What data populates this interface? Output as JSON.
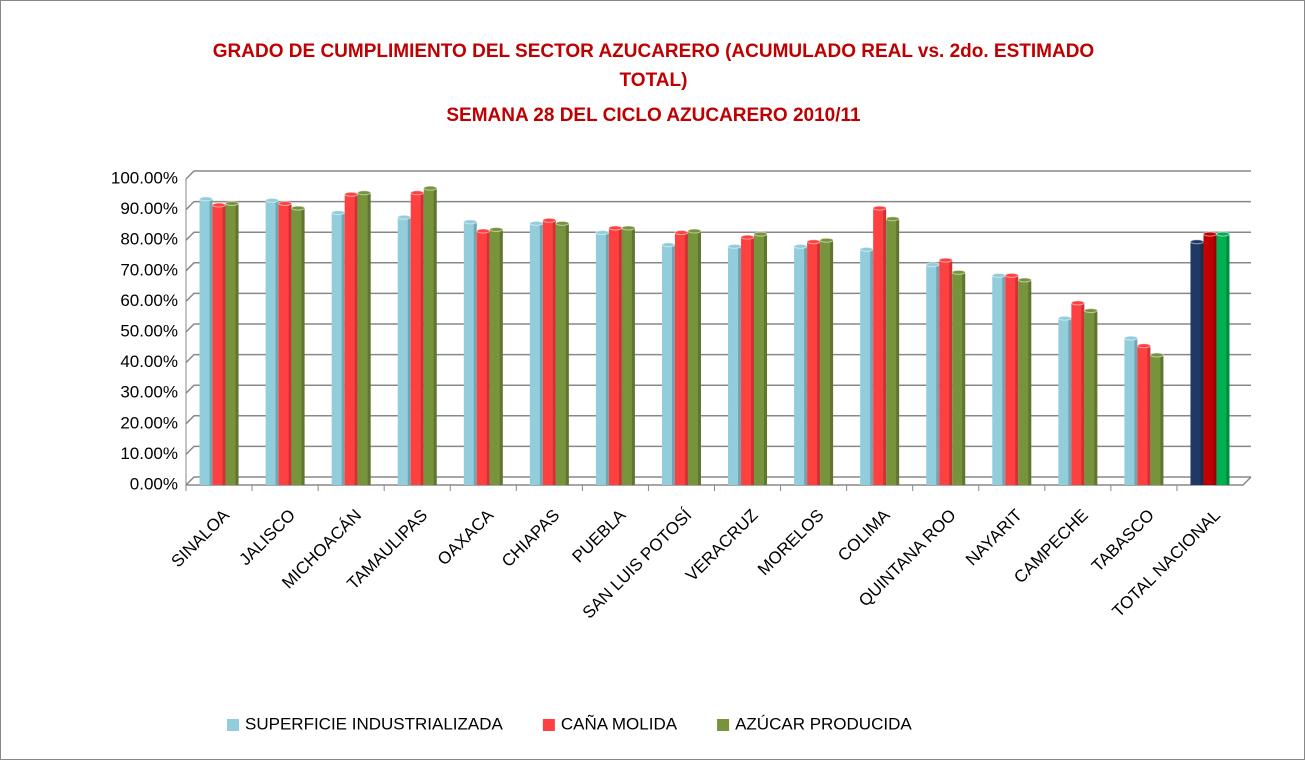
{
  "chart_data": {
    "type": "bar",
    "title": "GRADO DE CUMPLIMIENTO DEL SECTOR AZUCARERO (ACUMULADO REAL vs. 2do. ESTIMADO TOTAL)",
    "subtitle": "SEMANA 28 DEL CICLO AZUCARERO 2010/11",
    "categories": [
      "SINALOA",
      "JALISCO",
      "MICHOACÁN",
      "TAMAULIPAS",
      "OAXACA",
      "CHIAPAS",
      "PUEBLA",
      "SAN LUIS POTOSÍ",
      "VERACRUZ",
      "MORELOS",
      "COLIMA",
      "QUINTANA ROO",
      "NAYARIT",
      "CAMPECHE",
      "TABASCO",
      "TOTAL NACIONAL"
    ],
    "series": [
      {
        "name": "SUPERFICIE INDUSTRIALIZADA",
        "color": "#92cddc",
        "colors": [
          "#92cddc",
          "#92cddc",
          "#92cddc",
          "#92cddc",
          "#92cddc",
          "#92cddc",
          "#92cddc",
          "#92cddc",
          "#92cddc",
          "#92cddc",
          "#92cddc",
          "#92cddc",
          "#92cddc",
          "#92cddc",
          "#92cddc",
          "#1f3864"
        ],
        "values": [
          93.5,
          93,
          89,
          87.5,
          86,
          85.5,
          82.5,
          78.5,
          78,
          78,
          77,
          72,
          68.5,
          54.5,
          48,
          79.5
        ]
      },
      {
        "name": "CAÑA MOLIDA",
        "color": "#ff4040",
        "colors": [
          "#ff4040",
          "#ff4040",
          "#ff4040",
          "#ff4040",
          "#ff4040",
          "#ff4040",
          "#ff4040",
          "#ff4040",
          "#ff4040",
          "#ff4040",
          "#ff4040",
          "#ff4040",
          "#ff4040",
          "#ff4040",
          "#ff4040",
          "#c00000"
        ],
        "values": [
          91.5,
          92,
          95,
          95.5,
          83,
          86.5,
          84,
          82.5,
          81,
          79.5,
          90.5,
          73.5,
          68.5,
          59.5,
          45.5,
          82
        ]
      },
      {
        "name": "AZÚCAR PRODUCIDA",
        "color": "#77933c",
        "colors": [
          "#77933c",
          "#77933c",
          "#77933c",
          "#77933c",
          "#77933c",
          "#77933c",
          "#77933c",
          "#77933c",
          "#77933c",
          "#77933c",
          "#77933c",
          "#77933c",
          "#77933c",
          "#77933c",
          "#77933c",
          "#00b050"
        ],
        "values": [
          92,
          90.5,
          95.5,
          97,
          83.5,
          85.5,
          84,
          83,
          82,
          80,
          87,
          69.5,
          67,
          57,
          42.5,
          82
        ]
      }
    ],
    "ylim": [
      0,
      100
    ],
    "yticks": [
      {
        "value": 0,
        "label": "0.00%"
      },
      {
        "value": 10,
        "label": "10.00%"
      },
      {
        "value": 20,
        "label": "20.00%"
      },
      {
        "value": 30,
        "label": "30.00%"
      },
      {
        "value": 40,
        "label": "40.00%"
      },
      {
        "value": 50,
        "label": "50.00%"
      },
      {
        "value": 60,
        "label": "60.00%"
      },
      {
        "value": 70,
        "label": "70.00%"
      },
      {
        "value": 80,
        "label": "80.00%"
      },
      {
        "value": 90,
        "label": "90.00%"
      },
      {
        "value": 100,
        "label": "100.00%"
      }
    ],
    "grid": true,
    "legend": "bottom"
  }
}
